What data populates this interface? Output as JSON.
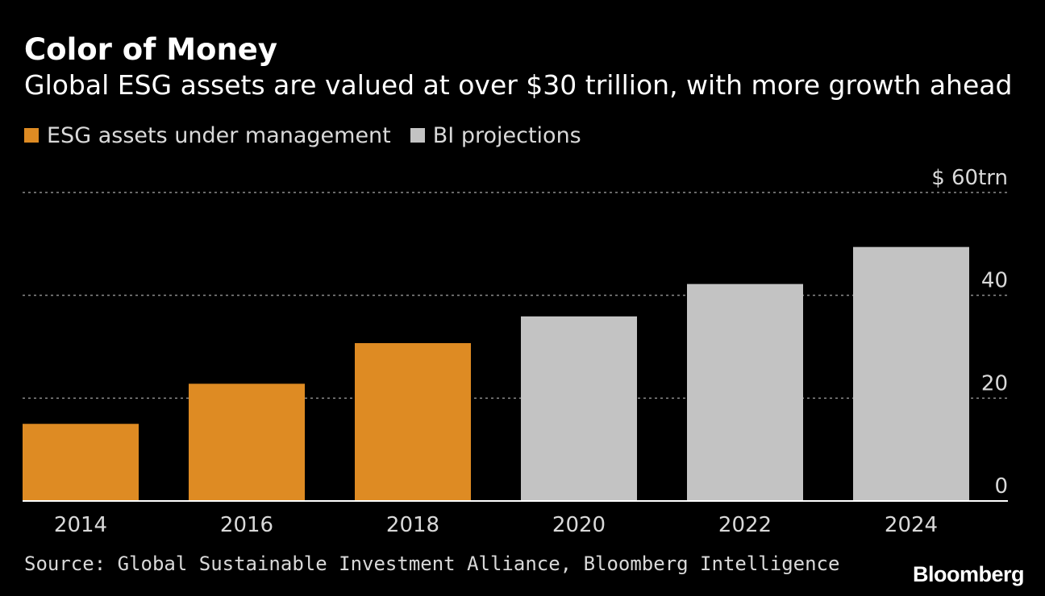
{
  "header": {
    "title": "Color of Money",
    "subtitle": "Global ESG assets are valued at over $30 trillion, with more growth ahead"
  },
  "legend": [
    {
      "label": "ESG assets under management",
      "color": "#de8b23"
    },
    {
      "label": "BI projections",
      "color": "#c3c3c3"
    }
  ],
  "footer": {
    "source": "Source: Global Sustainable Investment Alliance, Bloomberg Intelligence",
    "brand": "Bloomberg"
  },
  "chart_data": {
    "type": "bar",
    "title": "Color of Money",
    "subtitle": "Global ESG assets are valued at over $30 trillion, with more growth ahead",
    "categories": [
      "2014",
      "2016",
      "2018",
      "2020",
      "2022",
      "2024"
    ],
    "series": [
      {
        "name": "ESG assets under management",
        "values": [
          15,
          22.8,
          30.7,
          null,
          null,
          null
        ],
        "color": "#de8b23"
      },
      {
        "name": "BI projections",
        "values": [
          null,
          null,
          null,
          35.9,
          42.2,
          49.4
        ],
        "color": "#c3c3c3"
      }
    ],
    "yticks": [
      {
        "value": 0,
        "label": "0"
      },
      {
        "value": 20,
        "label": "20"
      },
      {
        "value": 40,
        "label": "40"
      },
      {
        "value": 60,
        "label": "$ 60trn"
      }
    ],
    "ylim": [
      0,
      60
    ],
    "xlabel": "",
    "ylabel": "",
    "yaxis_side": "right",
    "grid": "dotted-horizontal",
    "gridline_color": "#8c8c8c",
    "axis_color": "#ffffff",
    "background": "#000000"
  }
}
